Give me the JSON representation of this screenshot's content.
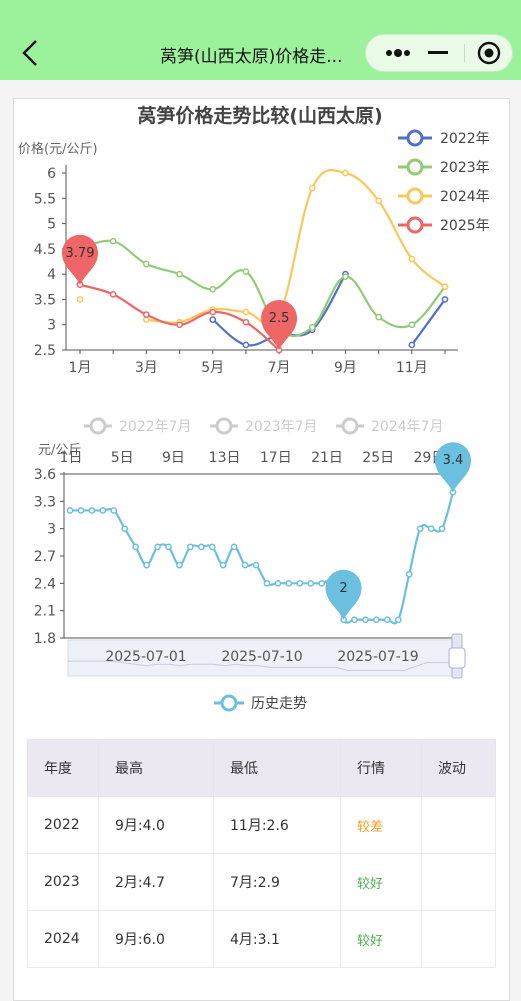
{
  "header": {
    "title": "莴笋(山西太原)价格走..."
  },
  "chart1": {
    "title": "莴笋价格走势比较(山西太原)",
    "ylabel": "价格(元/公斤)",
    "y_ticks": [
      "6",
      "5.5",
      "5",
      "4.5",
      "4",
      "3.5",
      "3",
      "2.5"
    ],
    "x_ticks": [
      "1月",
      "3月",
      "5月",
      "7月",
      "9月",
      "11月"
    ],
    "marker_1": "3.79",
    "marker_2": "2.5"
  },
  "chart_data": [
    {
      "type": "line",
      "title": "莴笋价格走势比较(山西太原)",
      "ylabel": "价格(元/公斤)",
      "ylim": [
        2.5,
        6
      ],
      "x": [
        1,
        2,
        3,
        4,
        5,
        6,
        7,
        8,
        9,
        10,
        11,
        12
      ],
      "legend": "top-right",
      "series": [
        {
          "name": "2022年",
          "color": "#5470c6",
          "values": [
            3.8,
            null,
            null,
            null,
            3.1,
            2.6,
            2.8,
            2.9,
            4.0,
            null,
            2.6,
            3.5
          ]
        },
        {
          "name": "2023年",
          "color": "#91cc75",
          "values": [
            4.5,
            4.65,
            4.2,
            4.0,
            3.7,
            4.05,
            2.9,
            2.95,
            3.95,
            3.15,
            3.0,
            3.75
          ]
        },
        {
          "name": "2024年",
          "color": "#fac858",
          "values": [
            3.5,
            null,
            3.1,
            3.05,
            3.3,
            3.25,
            3.2,
            5.7,
            6.0,
            5.45,
            4.3,
            3.75
          ]
        },
        {
          "name": "2025年",
          "color": "#ee6666",
          "values": [
            3.79,
            3.6,
            3.2,
            3.0,
            3.25,
            3.05,
            2.5,
            null,
            null,
            null,
            null,
            null
          ]
        }
      ]
    },
    {
      "type": "line",
      "ylabel": "元/公斤",
      "ylim": [
        1.8,
        3.6
      ],
      "series": [
        {
          "name": "历史走势",
          "color": "#6bbfdf",
          "values": [
            3.2,
            3.2,
            3.2,
            3.2,
            3.2,
            3.0,
            2.8,
            2.6,
            2.8,
            2.8,
            2.6,
            2.8,
            2.8,
            2.8,
            2.6,
            2.8,
            2.6,
            2.6,
            2.4,
            2.4,
            2.4,
            2.4,
            2.4,
            2.4,
            2.4,
            2.0,
            2.0,
            2.0,
            2.0,
            2.0,
            2.0,
            2.5,
            3.0,
            3.0,
            3.0,
            3.4
          ]
        }
      ]
    }
  ],
  "chart2": {
    "legend_items": [
      "2022年7月",
      "2023年7月",
      "2024年7月"
    ],
    "ylabel": "元/公斤",
    "y_ticks": [
      "3.6",
      "3.3",
      "3",
      "2.7",
      "2.4",
      "2.1",
      "1.8"
    ],
    "x_ticks": [
      "1日",
      "5日",
      "9日",
      "13日",
      "17日",
      "21日",
      "25日",
      "29日"
    ],
    "slider_dates": [
      "2025-07-01",
      "2025-07-10",
      "2025-07-19"
    ],
    "marker_max": "3.4",
    "marker_min": "2",
    "bottom_legend": "历史走势"
  },
  "table": {
    "headers": [
      "年度",
      "最高",
      "最低",
      "行情",
      "波动"
    ],
    "rows": [
      {
        "year": "2022",
        "high": "9月:4.0",
        "low": "11月:2.6",
        "trend": "较差",
        "trend_color": "#f0a020",
        "wave": ""
      },
      {
        "year": "2023",
        "high": "2月:4.7",
        "low": "7月:2.9",
        "trend": "较好",
        "trend_color": "#4caf50",
        "wave": ""
      },
      {
        "year": "2024",
        "high": "9月:6.0",
        "low": "4月:3.1",
        "trend": "较好",
        "trend_color": "#4caf50",
        "wave": ""
      }
    ]
  }
}
